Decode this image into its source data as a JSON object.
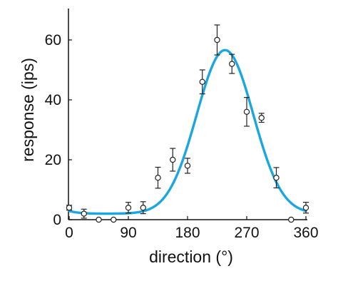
{
  "chart_data": {
    "type": "scatter",
    "xlabel": "direction (°)",
    "ylabel": "response (ips)",
    "xlim": [
      0,
      360
    ],
    "ylim": [
      0,
      70
    ],
    "xticks": [
      0,
      90,
      180,
      270,
      360
    ],
    "yticks": [
      0,
      20,
      40,
      60
    ],
    "grid": false,
    "series": [
      {
        "kind": "points-with-error",
        "marker": "open-circle",
        "color": "#222222",
        "x": [
          0,
          22.5,
          45,
          67.5,
          90,
          112.5,
          135,
          157.5,
          180,
          202.5,
          225,
          247.5,
          270,
          292.5,
          315,
          337.5,
          360
        ],
        "y": [
          4,
          2,
          0,
          0,
          4,
          4,
          14,
          20,
          18,
          46,
          60,
          52,
          36,
          34,
          14,
          0,
          4
        ],
        "err": [
          0.8,
          1.5,
          0,
          0,
          1.8,
          2,
          3.5,
          3.8,
          2.5,
          4,
          5,
          3.2,
          4.8,
          1.5,
          3.4,
          0,
          1.8
        ]
      },
      {
        "kind": "fit-curve",
        "color": "#1aa6de",
        "baseline": 2.0,
        "amplitude": 54.6,
        "peak": 237,
        "width": 43
      }
    ]
  }
}
